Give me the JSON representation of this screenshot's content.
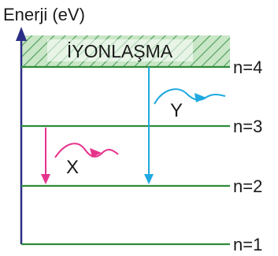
{
  "axis": {
    "label": "Enerji (eV)"
  },
  "ionization": {
    "label": "İYONLAŞMA"
  },
  "levels": [
    {
      "label": "n=4"
    },
    {
      "label": "n=3"
    },
    {
      "label": "n=2"
    },
    {
      "label": "n=1"
    }
  ],
  "transitions": [
    {
      "from": "n=3",
      "to": "n=2",
      "photon_label": "X",
      "color": "#e6338c"
    },
    {
      "from": "n=4",
      "to": "n=2",
      "photon_label": "Y",
      "color": "#1fa9e1"
    }
  ],
  "colors": {
    "level_line": "#2e8b3a",
    "axis": "#2b2f86",
    "hatch_fill": "#c9e6c7",
    "hatch_line": "#4a9e57"
  }
}
